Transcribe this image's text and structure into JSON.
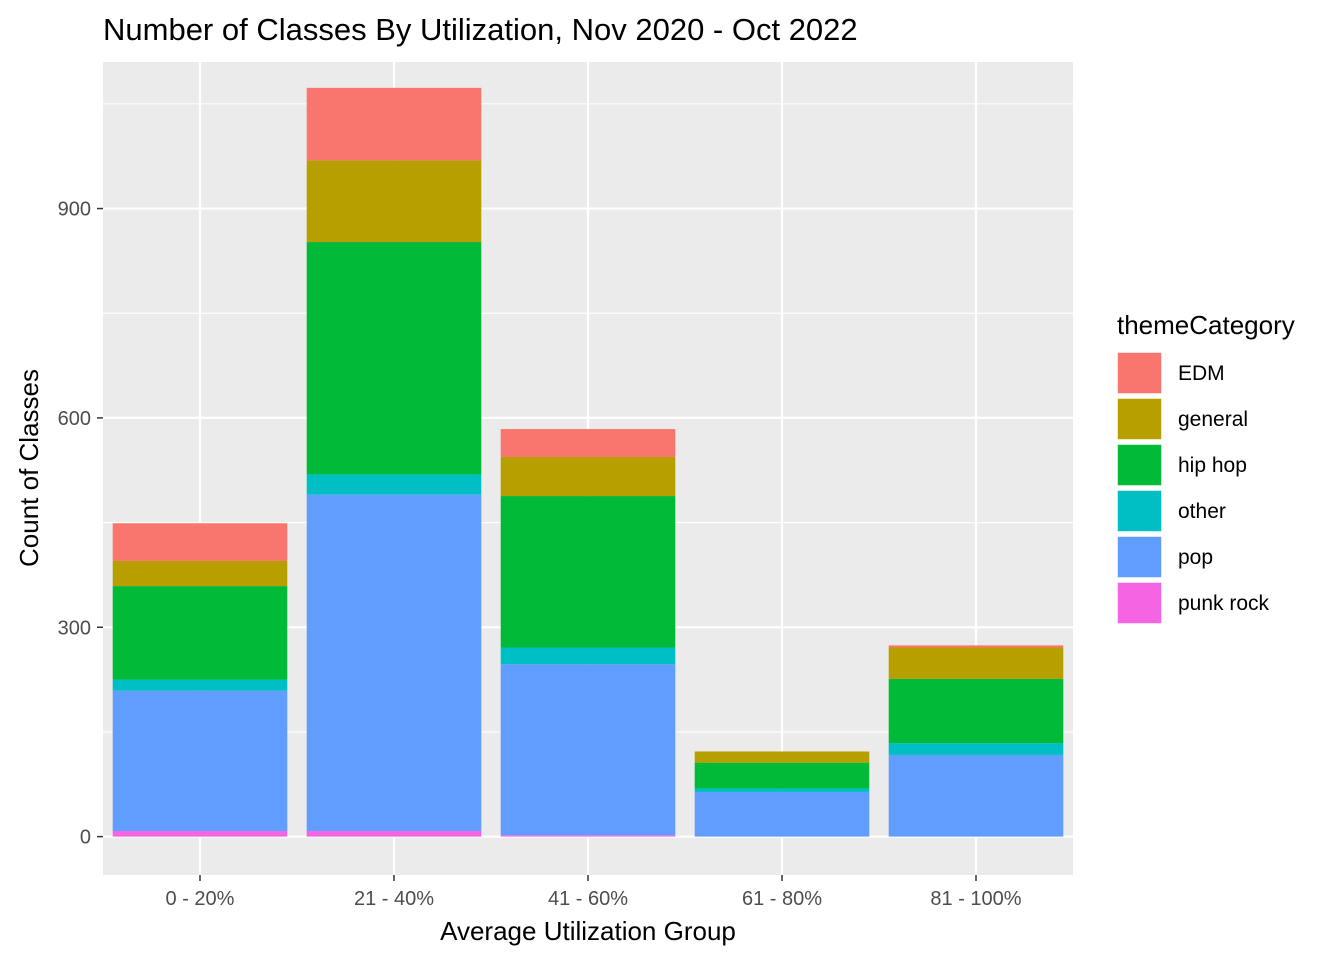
{
  "chart_data": {
    "type": "bar",
    "stacked": true,
    "title": "Number of Classes By Utilization, Nov 2020 - Oct 2022",
    "xlabel": "Average Utilization Group",
    "ylabel": "Count of Classes",
    "ylim": [
      -55,
      1110
    ],
    "yticks": [
      0,
      300,
      600,
      900
    ],
    "grid": true,
    "legend_position": "right",
    "legend_title": "themeCategory",
    "categories": [
      "0 - 20%",
      "21 - 40%",
      "41 - 60%",
      "61 - 80%",
      "81 - 100%"
    ],
    "series": [
      {
        "name": "punk rock",
        "color": "#F564E3",
        "values": [
          8,
          8,
          2,
          0,
          0
        ]
      },
      {
        "name": "pop",
        "color": "#619CFF",
        "values": [
          201,
          482,
          245,
          64,
          117
        ]
      },
      {
        "name": "other",
        "color": "#00BFC4",
        "values": [
          16,
          29,
          24,
          5,
          17
        ]
      },
      {
        "name": "hip hop",
        "color": "#00BA38",
        "values": [
          134,
          333,
          217,
          37,
          92
        ]
      },
      {
        "name": "general",
        "color": "#B79F00",
        "values": [
          36,
          117,
          56,
          16,
          45
        ]
      },
      {
        "name": "EDM",
        "color": "#F8766D",
        "values": [
          54,
          104,
          40,
          0,
          3
        ]
      }
    ],
    "legend_order": [
      "EDM",
      "general",
      "hip hop",
      "other",
      "pop",
      "punk rock"
    ]
  },
  "theme": {
    "panel_background": "#EBEBEB",
    "grid_color": "#FFFFFF",
    "tick_label_color": "#4D4D4D",
    "text_color": "#000000"
  }
}
